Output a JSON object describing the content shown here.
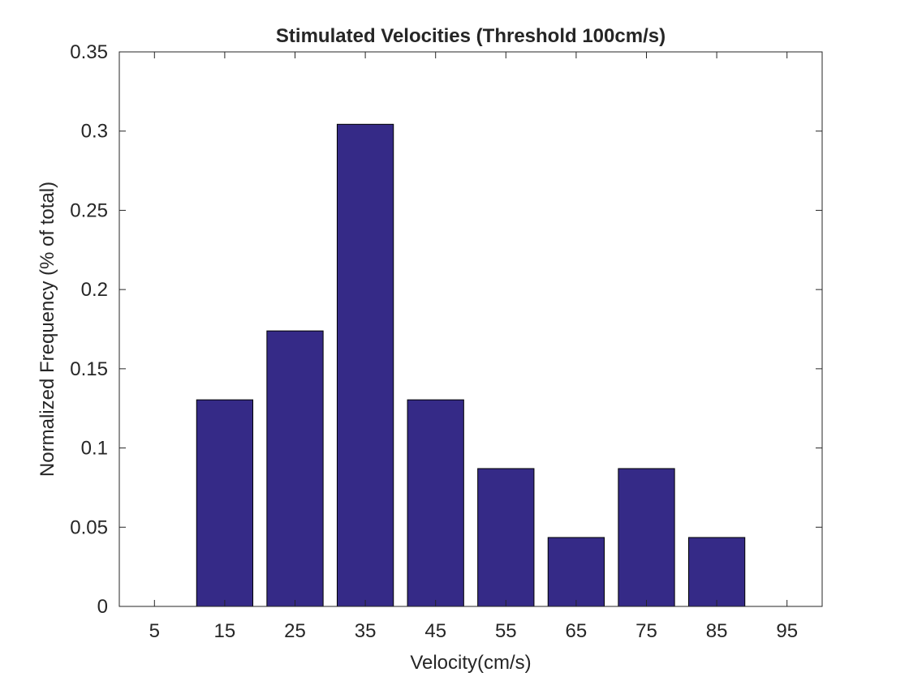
{
  "chart_data": {
    "type": "bar",
    "title": "Stimulated Velocities (Threshold 100cm/s)",
    "xlabel": "Velocity(cm/s)",
    "ylabel": "Normalized Frequency (% of total)",
    "categories": [
      "5",
      "15",
      "25",
      "35",
      "45",
      "55",
      "65",
      "75",
      "85",
      "95"
    ],
    "x": [
      5,
      15,
      25,
      35,
      45,
      55,
      65,
      75,
      85,
      95
    ],
    "values": [
      0,
      0.1304,
      0.1739,
      0.3043,
      0.1304,
      0.087,
      0.0435,
      0.087,
      0.0435,
      0
    ],
    "xlim": [
      0,
      100
    ],
    "ylim": [
      0,
      0.35
    ],
    "yticks": [
      0,
      0.05,
      0.1,
      0.15,
      0.2,
      0.25,
      0.3,
      0.35
    ],
    "ytick_labels": [
      "0",
      "0.05",
      "0.1",
      "0.15",
      "0.2",
      "0.25",
      "0.3",
      "0.35"
    ],
    "bar_color": "#352a87",
    "grid": false,
    "legend": "none"
  }
}
